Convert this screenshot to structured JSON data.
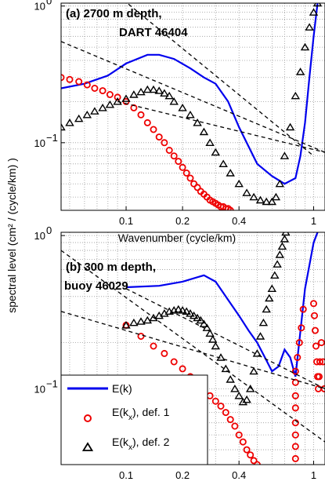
{
  "chart_data": {
    "type": "line",
    "ylabel": "spectral level (cm² / (cycle/km) )",
    "panels": [
      {
        "id": "a",
        "title_line1": "(a)  2700 m depth,",
        "title_line2": "DART 46404",
        "xlabel": "Wavenumber (cycle/km)",
        "xscale": "log",
        "yscale": "log",
        "xlim": [
          0.045,
          1.15
        ],
        "ylim": [
          0.032,
          1.05
        ],
        "xticks": [
          {
            "value": 0.1,
            "label": "0.1"
          },
          {
            "value": 0.2,
            "label": "0.2"
          },
          {
            "value": 0.4,
            "label": "0.4"
          },
          {
            "value": 1,
            "label": "1"
          }
        ],
        "yticks": [
          {
            "value": 1,
            "base": "10",
            "exp": "0"
          },
          {
            "value": 0.1,
            "base": "10",
            "exp": "−1"
          }
        ],
        "grid": true,
        "series": [
          {
            "key": "E_k",
            "style": "line",
            "color": "#0000ee",
            "x": [
              0.045,
              0.06,
              0.08,
              0.1,
              0.13,
              0.15,
              0.18,
              0.22,
              0.26,
              0.3,
              0.35,
              0.4,
              0.5,
              0.6,
              0.7,
              0.8,
              0.85,
              0.9,
              0.95,
              1.0,
              1.05
            ],
            "y": [
              0.25,
              0.27,
              0.31,
              0.38,
              0.44,
              0.44,
              0.41,
              0.35,
              0.3,
              0.27,
              0.2,
              0.13,
              0.07,
              0.057,
              0.05,
              0.055,
              0.08,
              0.14,
              0.3,
              0.6,
              1.05
            ]
          },
          {
            "key": "E_kx_def1",
            "style": "circle",
            "color": "#ee0000",
            "x": [
              0.045,
              0.05,
              0.056,
              0.062,
              0.068,
              0.075,
              0.082,
              0.09,
              0.1,
              0.11,
              0.12,
              0.13,
              0.14,
              0.15,
              0.16,
              0.17,
              0.18,
              0.19,
              0.2,
              0.21,
              0.22,
              0.23,
              0.24,
              0.25,
              0.26,
              0.27,
              0.28,
              0.29,
              0.3,
              0.31,
              0.32,
              0.33,
              0.34,
              0.35,
              0.36
            ],
            "y": [
              0.3,
              0.29,
              0.28,
              0.265,
              0.25,
              0.24,
              0.225,
              0.215,
              0.2,
              0.18,
              0.16,
              0.14,
              0.125,
              0.11,
              0.1,
              0.088,
              0.08,
              0.073,
              0.066,
              0.06,
              0.055,
              0.05,
              0.047,
              0.044,
              0.042,
              0.04,
              0.038,
              0.037,
              0.036,
              0.035,
              0.034,
              0.034,
              0.033,
              0.033,
              0.032
            ]
          },
          {
            "key": "E_kx_def2",
            "style": "triangle",
            "color": "#000000",
            "x": [
              0.045,
              0.05,
              0.056,
              0.062,
              0.068,
              0.075,
              0.082,
              0.09,
              0.1,
              0.11,
              0.12,
              0.13,
              0.14,
              0.15,
              0.16,
              0.17,
              0.18,
              0.2,
              0.22,
              0.24,
              0.26,
              0.28,
              0.3,
              0.33,
              0.36,
              0.4,
              0.44,
              0.48,
              0.52,
              0.56,
              0.6,
              0.63,
              0.66,
              0.7,
              0.75,
              0.8,
              0.85,
              0.9,
              0.95,
              1.0,
              1.05,
              1.1
            ],
            "y": [
              0.13,
              0.14,
              0.15,
              0.16,
              0.17,
              0.18,
              0.19,
              0.2,
              0.21,
              0.225,
              0.235,
              0.245,
              0.245,
              0.24,
              0.23,
              0.22,
              0.2,
              0.18,
              0.16,
              0.14,
              0.12,
              0.1,
              0.085,
              0.07,
              0.06,
              0.05,
              0.043,
              0.04,
              0.038,
              0.037,
              0.037,
              0.04,
              0.05,
              0.08,
              0.13,
              0.22,
              0.33,
              0.5,
              0.7,
              0.9,
              1.05,
              1.2
            ]
          },
          {
            "key": "ref1",
            "style": "dashed",
            "color": "#000000",
            "x": [
              0.045,
              1.15
            ],
            "y": [
              0.55,
              0.085
            ]
          },
          {
            "key": "ref2",
            "style": "dashed",
            "color": "#000000",
            "x": [
              0.09,
              1.0
            ],
            "y": [
              1.2,
              0.08
            ]
          },
          {
            "key": "ref3",
            "style": "dashed",
            "color": "#000000",
            "x": [
              0.09,
              1.15
            ],
            "y": [
              0.2,
              0.085
            ]
          }
        ]
      },
      {
        "id": "b",
        "title_line1": "(b)  300 m depth,",
        "title_line2": "buoy 46029",
        "xlabel": "",
        "xscale": "log",
        "yscale": "log",
        "xlim": [
          0.045,
          1.15
        ],
        "ylim": [
          0.032,
          1.05
        ],
        "xticks": [
          {
            "value": 0.1,
            "label": "0.1"
          },
          {
            "value": 0.2,
            "label": "0.2"
          },
          {
            "value": 0.4,
            "label": "0.4"
          },
          {
            "value": 1,
            "label": "1"
          }
        ],
        "yticks": [
          {
            "value": 1,
            "base": "10",
            "exp": "0"
          },
          {
            "value": 0.1,
            "base": "10",
            "exp": "−1"
          }
        ],
        "grid": true,
        "series": [
          {
            "key": "E_k",
            "style": "line",
            "color": "#0000ee",
            "x": [
              0.1,
              0.15,
              0.2,
              0.26,
              0.3,
              0.34,
              0.4,
              0.45,
              0.5,
              0.55,
              0.6,
              0.65,
              0.7,
              0.75,
              0.8,
              0.9,
              1.0,
              1.05
            ],
            "y": [
              0.46,
              0.47,
              0.5,
              0.55,
              0.5,
              0.4,
              0.3,
              0.24,
              0.2,
              0.16,
              0.13,
              0.14,
              0.18,
              0.16,
              0.12,
              0.45,
              0.9,
              1.05
            ]
          },
          {
            "key": "E_kx_def1",
            "style": "circle",
            "color": "#ee0000",
            "x": [
              0.1,
              0.12,
              0.14,
              0.16,
              0.18,
              0.2,
              0.22,
              0.24,
              0.26,
              0.28,
              0.3,
              0.32,
              0.34,
              0.36,
              0.38,
              0.4,
              0.42,
              0.44,
              0.46,
              0.48,
              0.5,
              0.8,
              0.8,
              0.8,
              0.8,
              0.8,
              0.8,
              0.8,
              0.8,
              0.82,
              0.84,
              0.86,
              0.88,
              1.0,
              1.01,
              1.02,
              1.03,
              1.04,
              1.05,
              1.06,
              1.07,
              1.08,
              1.1,
              1.12,
              1.14
            ],
            "y": [
              0.26,
              0.22,
              0.19,
              0.17,
              0.15,
              0.135,
              0.12,
              0.108,
              0.098,
              0.09,
              0.083,
              0.077,
              0.07,
              0.063,
              0.057,
              0.05,
              0.045,
              0.04,
              0.037,
              0.034,
              0.032,
              0.035,
              0.042,
              0.05,
              0.06,
              0.075,
              0.09,
              0.11,
              0.13,
              0.16,
              0.2,
              0.25,
              0.33,
              0.36,
              0.3,
              0.24,
              0.19,
              0.15,
              0.12,
              0.1,
              0.12,
              0.15,
              0.2,
              0.15,
              0.1
            ]
          },
          {
            "key": "E_kx_def2",
            "style": "triangle",
            "color": "#000000",
            "x": [
              0.1,
              0.11,
              0.12,
              0.13,
              0.14,
              0.15,
              0.16,
              0.17,
              0.18,
              0.19,
              0.2,
              0.21,
              0.22,
              0.23,
              0.24,
              0.25,
              0.26,
              0.27,
              0.28,
              0.29,
              0.3,
              0.32,
              0.34,
              0.36,
              0.38,
              0.4,
              0.42,
              0.44,
              0.46,
              0.48,
              0.5,
              0.52,
              0.54,
              0.56,
              0.58,
              0.6,
              0.62,
              0.64,
              0.66,
              0.68,
              0.7,
              0.71
            ],
            "y": [
              0.26,
              0.27,
              0.275,
              0.28,
              0.29,
              0.3,
              0.31,
              0.32,
              0.325,
              0.33,
              0.325,
              0.32,
              0.31,
              0.3,
              0.29,
              0.28,
              0.265,
              0.25,
              0.23,
              0.21,
              0.19,
              0.16,
              0.135,
              0.115,
              0.1,
              0.09,
              0.082,
              0.085,
              0.1,
              0.13,
              0.17,
              0.22,
              0.27,
              0.33,
              0.39,
              0.45,
              0.55,
              0.65,
              0.75,
              0.85,
              0.95,
              1.05
            ]
          },
          {
            "key": "ref1",
            "style": "dashed",
            "color": "#000000",
            "x": [
              0.045,
              1.15
            ],
            "y": [
              0.32,
              0.1
            ]
          },
          {
            "key": "ref2",
            "style": "dashed",
            "color": "#000000",
            "x": [
              0.045,
              1.15
            ],
            "y": [
              0.8,
              0.045
            ]
          },
          {
            "key": "ref3",
            "style": "dashed",
            "color": "#000000",
            "x": [
              0.1,
              1.15
            ],
            "y": [
              0.45,
              0.1
            ]
          }
        ],
        "legend": {
          "placement": "bottom-left",
          "entries": [
            {
              "key": "E_k",
              "label": "E(k)",
              "sub": "",
              "suffix": ""
            },
            {
              "key": "E_kx_def1",
              "label": "E(k",
              "sub": "x",
              "suffix": "), def. 1"
            },
            {
              "key": "E_kx_def2",
              "label": "E(k",
              "sub": "x",
              "suffix": "), def. 2"
            }
          ]
        }
      }
    ]
  }
}
